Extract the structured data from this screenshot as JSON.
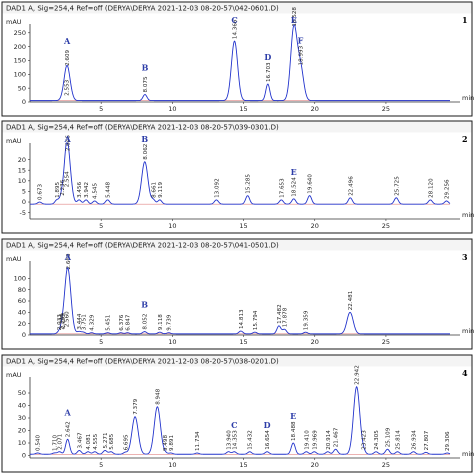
{
  "chart_data": [
    {
      "type": "line",
      "panel_number": "1",
      "title": "DAD1 A, Sig=254,4 Ref=off (DERYA\\DERYA 2021-12-03 08-20-57\\042-0601.D)",
      "ylabel": "mAU",
      "xlabel": "min",
      "xlim": [
        0,
        29.5
      ],
      "ylim": [
        0,
        260
      ],
      "yticks": [
        "250",
        "200",
        "150",
        "100",
        "50",
        "0"
      ],
      "ytick_values": [
        250,
        200,
        150,
        100,
        50,
        0
      ],
      "xticks": [
        "5",
        "10",
        "15",
        "20",
        "25"
      ],
      "xtick_values": [
        5,
        10,
        15,
        20,
        25
      ],
      "baseline": 5,
      "peaks": [
        {
          "rt": 2.553,
          "label": "2.553",
          "height": 10,
          "marker": ""
        },
        {
          "rt": 2.609,
          "label": "2.609",
          "height": 118,
          "marker": "A"
        },
        {
          "rt": 8.075,
          "label": "8.075",
          "height": 22,
          "marker": "B"
        },
        {
          "rt": 14.366,
          "label": "14.366",
          "height": 215,
          "marker": "C"
        },
        {
          "rt": 16.703,
          "label": "16.703",
          "height": 60,
          "marker": "D"
        },
        {
          "rt": 18.528,
          "label": "18.528",
          "height": 260,
          "marker": "E"
        },
        {
          "rt": 18.993,
          "label": "18.993",
          "height": 120,
          "marker": "F"
        }
      ]
    },
    {
      "type": "line",
      "panel_number": "2",
      "title": "DAD1 A, Sig=254,4 Ref=off (DERYA\\DERYA 2021-12-03 08-20-57\\039-0301.D)",
      "ylabel": "mAU",
      "xlabel": "min",
      "xlim": [
        0,
        29.5
      ],
      "ylim": [
        -8,
        25
      ],
      "yticks": [
        "20",
        "15",
        "10",
        "5",
        "0",
        "-5"
      ],
      "ytick_values": [
        20,
        15,
        10,
        5,
        0,
        -5
      ],
      "xticks": [
        "5",
        "10",
        "15",
        "20",
        "25"
      ],
      "xtick_values": [
        5,
        10,
        15,
        20,
        25
      ],
      "baseline": -1,
      "peaks": [
        {
          "rt": 0.673,
          "label": "0.673",
          "height": 1,
          "marker": ""
        },
        {
          "rt": 1.895,
          "label": "1.895",
          "height": 2,
          "marker": ""
        },
        {
          "rt": 2.236,
          "label": "2.236",
          "height": 3,
          "marker": ""
        },
        {
          "rt": 2.554,
          "label": "2.554",
          "height": 7,
          "marker": ""
        },
        {
          "rt": 2.646,
          "label": "2.646",
          "height": 24,
          "marker": "A"
        },
        {
          "rt": 3.456,
          "label": "3.456",
          "height": 2,
          "marker": ""
        },
        {
          "rt": 3.942,
          "label": "3.942",
          "height": 2,
          "marker": ""
        },
        {
          "rt": 4.545,
          "label": "4.545",
          "height": 1.5,
          "marker": ""
        },
        {
          "rt": 5.448,
          "label": "5.448",
          "height": 2,
          "marker": ""
        },
        {
          "rt": 8.062,
          "label": "8.062",
          "height": 20,
          "marker": "B"
        },
        {
          "rt": 8.661,
          "label": "8.661",
          "height": 2,
          "marker": ""
        },
        {
          "rt": 9.119,
          "label": "9.119",
          "height": 2,
          "marker": ""
        },
        {
          "rt": 13.092,
          "label": "13.092",
          "height": 2,
          "marker": ""
        },
        {
          "rt": 15.285,
          "label": "15.285",
          "height": 4,
          "marker": ""
        },
        {
          "rt": 17.653,
          "label": "17.653",
          "height": 2,
          "marker": ""
        },
        {
          "rt": 18.524,
          "label": "18.524",
          "height": 2.5,
          "marker": "E"
        },
        {
          "rt": 19.64,
          "label": "19.640",
          "height": 4,
          "marker": ""
        },
        {
          "rt": 22.496,
          "label": "22.496",
          "height": 3,
          "marker": ""
        },
        {
          "rt": 25.725,
          "label": "25.725",
          "height": 3,
          "marker": ""
        },
        {
          "rt": 28.12,
          "label": "28.120",
          "height": 2,
          "marker": ""
        },
        {
          "rt": 29.256,
          "label": "29.256",
          "height": 1.5,
          "marker": ""
        }
      ]
    },
    {
      "type": "line",
      "panel_number": "3",
      "title": "DAD1 A, Sig=254,4 Ref=off (DERYA\\DERYA 2021-12-03 08-20-57\\041-0501.D)",
      "ylabel": "mAU",
      "xlabel": "min",
      "xlim": [
        0,
        29.5
      ],
      "ylim": [
        0,
        120
      ],
      "yticks": [
        "100",
        "80",
        "60",
        "40",
        "20",
        "0"
      ],
      "ytick_values": [
        100,
        80,
        60,
        40,
        20,
        0
      ],
      "xticks": [
        "5",
        "10",
        "15",
        "20",
        "25"
      ],
      "xtick_values": [
        5,
        10,
        15,
        20,
        25
      ],
      "baseline": 2,
      "peaks": [
        {
          "rt": 2.033,
          "label": "2.033",
          "height": 3,
          "marker": ""
        },
        {
          "rt": 2.226,
          "label": "2.226",
          "height": 4,
          "marker": ""
        },
        {
          "rt": 2.299,
          "label": "2.299",
          "height": 5,
          "marker": ""
        },
        {
          "rt": 2.56,
          "label": "2.560",
          "height": 8,
          "marker": ""
        },
        {
          "rt": 2.66,
          "label": "2.660",
          "height": 110,
          "marker": "A"
        },
        {
          "rt": 3.444,
          "label": "3.444",
          "height": 4,
          "marker": ""
        },
        {
          "rt": 3.751,
          "label": "3.751",
          "height": 3,
          "marker": ""
        },
        {
          "rt": 4.329,
          "label": "4.329",
          "height": 2,
          "marker": ""
        },
        {
          "rt": 5.451,
          "label": "5.451",
          "height": 2,
          "marker": ""
        },
        {
          "rt": 6.376,
          "label": "6.376",
          "height": 2,
          "marker": ""
        },
        {
          "rt": 6.847,
          "label": "6.847",
          "height": 2,
          "marker": ""
        },
        {
          "rt": 8.052,
          "label": "8.052",
          "height": 4,
          "marker": "B"
        },
        {
          "rt": 9.118,
          "label": "9.118",
          "height": 3,
          "marker": ""
        },
        {
          "rt": 9.739,
          "label": "9.739",
          "height": 2,
          "marker": ""
        },
        {
          "rt": 14.813,
          "label": "14.813",
          "height": 5,
          "marker": ""
        },
        {
          "rt": 15.794,
          "label": "15.794",
          "height": 3,
          "marker": ""
        },
        {
          "rt": 17.482,
          "label": "17.482",
          "height": 14,
          "marker": ""
        },
        {
          "rt": 17.878,
          "label": "17.878",
          "height": 8,
          "marker": ""
        },
        {
          "rt": 19.359,
          "label": "19.359",
          "height": 3,
          "marker": ""
        },
        {
          "rt": 22.481,
          "label": "22.481",
          "height": 38,
          "marker": ""
        }
      ]
    },
    {
      "type": "line",
      "panel_number": "4",
      "title": "DAD1 A, Sig=254,4 Ref=off (DERYA\\DERYA 2021-12-03 08-20-57\\038-0201.D)",
      "ylabel": "mAU",
      "xlabel": "min",
      "xlim": [
        0,
        29.5
      ],
      "ylim": [
        -2,
        58
      ],
      "yticks": [
        "50",
        "40",
        "30",
        "20",
        "10",
        "0"
      ],
      "ytick_values": [
        50,
        40,
        30,
        20,
        10,
        0
      ],
      "xticks": [
        "5",
        "10",
        "15",
        "20",
        "25"
      ],
      "xtick_values": [
        5,
        10,
        15,
        20,
        25
      ],
      "baseline": 1,
      "peaks": [
        {
          "rt": 0.54,
          "label": "0.540",
          "height": 1,
          "marker": ""
        },
        {
          "rt": 1.71,
          "label": "1.710",
          "height": 1,
          "marker": ""
        },
        {
          "rt": 2.071,
          "label": "2.071",
          "height": 2,
          "marker": ""
        },
        {
          "rt": 2.642,
          "label": "2.642",
          "height": 12,
          "marker": "A"
        },
        {
          "rt": 3.467,
          "label": "3.467",
          "height": 3,
          "marker": ""
        },
        {
          "rt": 4.081,
          "label": "4.081",
          "height": 2,
          "marker": ""
        },
        {
          "rt": 4.555,
          "label": "4.555",
          "height": 2,
          "marker": ""
        },
        {
          "rt": 5.271,
          "label": "5.271",
          "height": 3,
          "marker": ""
        },
        {
          "rt": 5.685,
          "label": "5.685",
          "height": 2,
          "marker": ""
        },
        {
          "rt": 6.695,
          "label": "6.695",
          "height": 1.5,
          "marker": ""
        },
        {
          "rt": 7.379,
          "label": "7.379",
          "height": 30,
          "marker": ""
        },
        {
          "rt": 8.948,
          "label": "8.948",
          "height": 38,
          "marker": ""
        },
        {
          "rt": 9.498,
          "label": "9.498",
          "height": 1,
          "marker": ""
        },
        {
          "rt": 9.891,
          "label": "9.891",
          "height": 1,
          "marker": ""
        },
        {
          "rt": 11.734,
          "label": "11.734",
          "height": 1,
          "marker": ""
        },
        {
          "rt": 13.94,
          "label": "13.940",
          "height": 2,
          "marker": ""
        },
        {
          "rt": 14.353,
          "label": "14.353",
          "height": 2,
          "marker": "C"
        },
        {
          "rt": 15.432,
          "label": "15.432",
          "height": 2,
          "marker": ""
        },
        {
          "rt": 16.654,
          "label": "16.654",
          "height": 2,
          "marker": "D"
        },
        {
          "rt": 18.488,
          "label": "18.488",
          "height": 9,
          "marker": "E"
        },
        {
          "rt": 19.41,
          "label": "19.410",
          "height": 2,
          "marker": ""
        },
        {
          "rt": 19.969,
          "label": "19.969",
          "height": 2,
          "marker": ""
        },
        {
          "rt": 20.914,
          "label": "20.914",
          "height": 2,
          "marker": ""
        },
        {
          "rt": 21.467,
          "label": "21.467",
          "height": 4,
          "marker": ""
        },
        {
          "rt": 22.942,
          "label": "22.942",
          "height": 54,
          "marker": ""
        },
        {
          "rt": 23.423,
          "label": "23.423",
          "height": 2,
          "marker": ""
        },
        {
          "rt": 24.305,
          "label": "24.305",
          "height": 2,
          "marker": ""
        },
        {
          "rt": 25.109,
          "label": "25.109",
          "height": 4,
          "marker": ""
        },
        {
          "rt": 25.814,
          "label": "25.814",
          "height": 2,
          "marker": ""
        },
        {
          "rt": 26.934,
          "label": "26.934",
          "height": 2,
          "marker": ""
        },
        {
          "rt": 27.807,
          "label": "27.807",
          "height": 1.5,
          "marker": ""
        },
        {
          "rt": 29.306,
          "label": "29.306",
          "height": 1,
          "marker": ""
        }
      ]
    }
  ],
  "colors": {
    "signal": "#2233cc",
    "baseline": "#d04040",
    "marker": "#2d3da8",
    "frame": "#1a1a1a",
    "title_bar": "#f4f4f4"
  }
}
